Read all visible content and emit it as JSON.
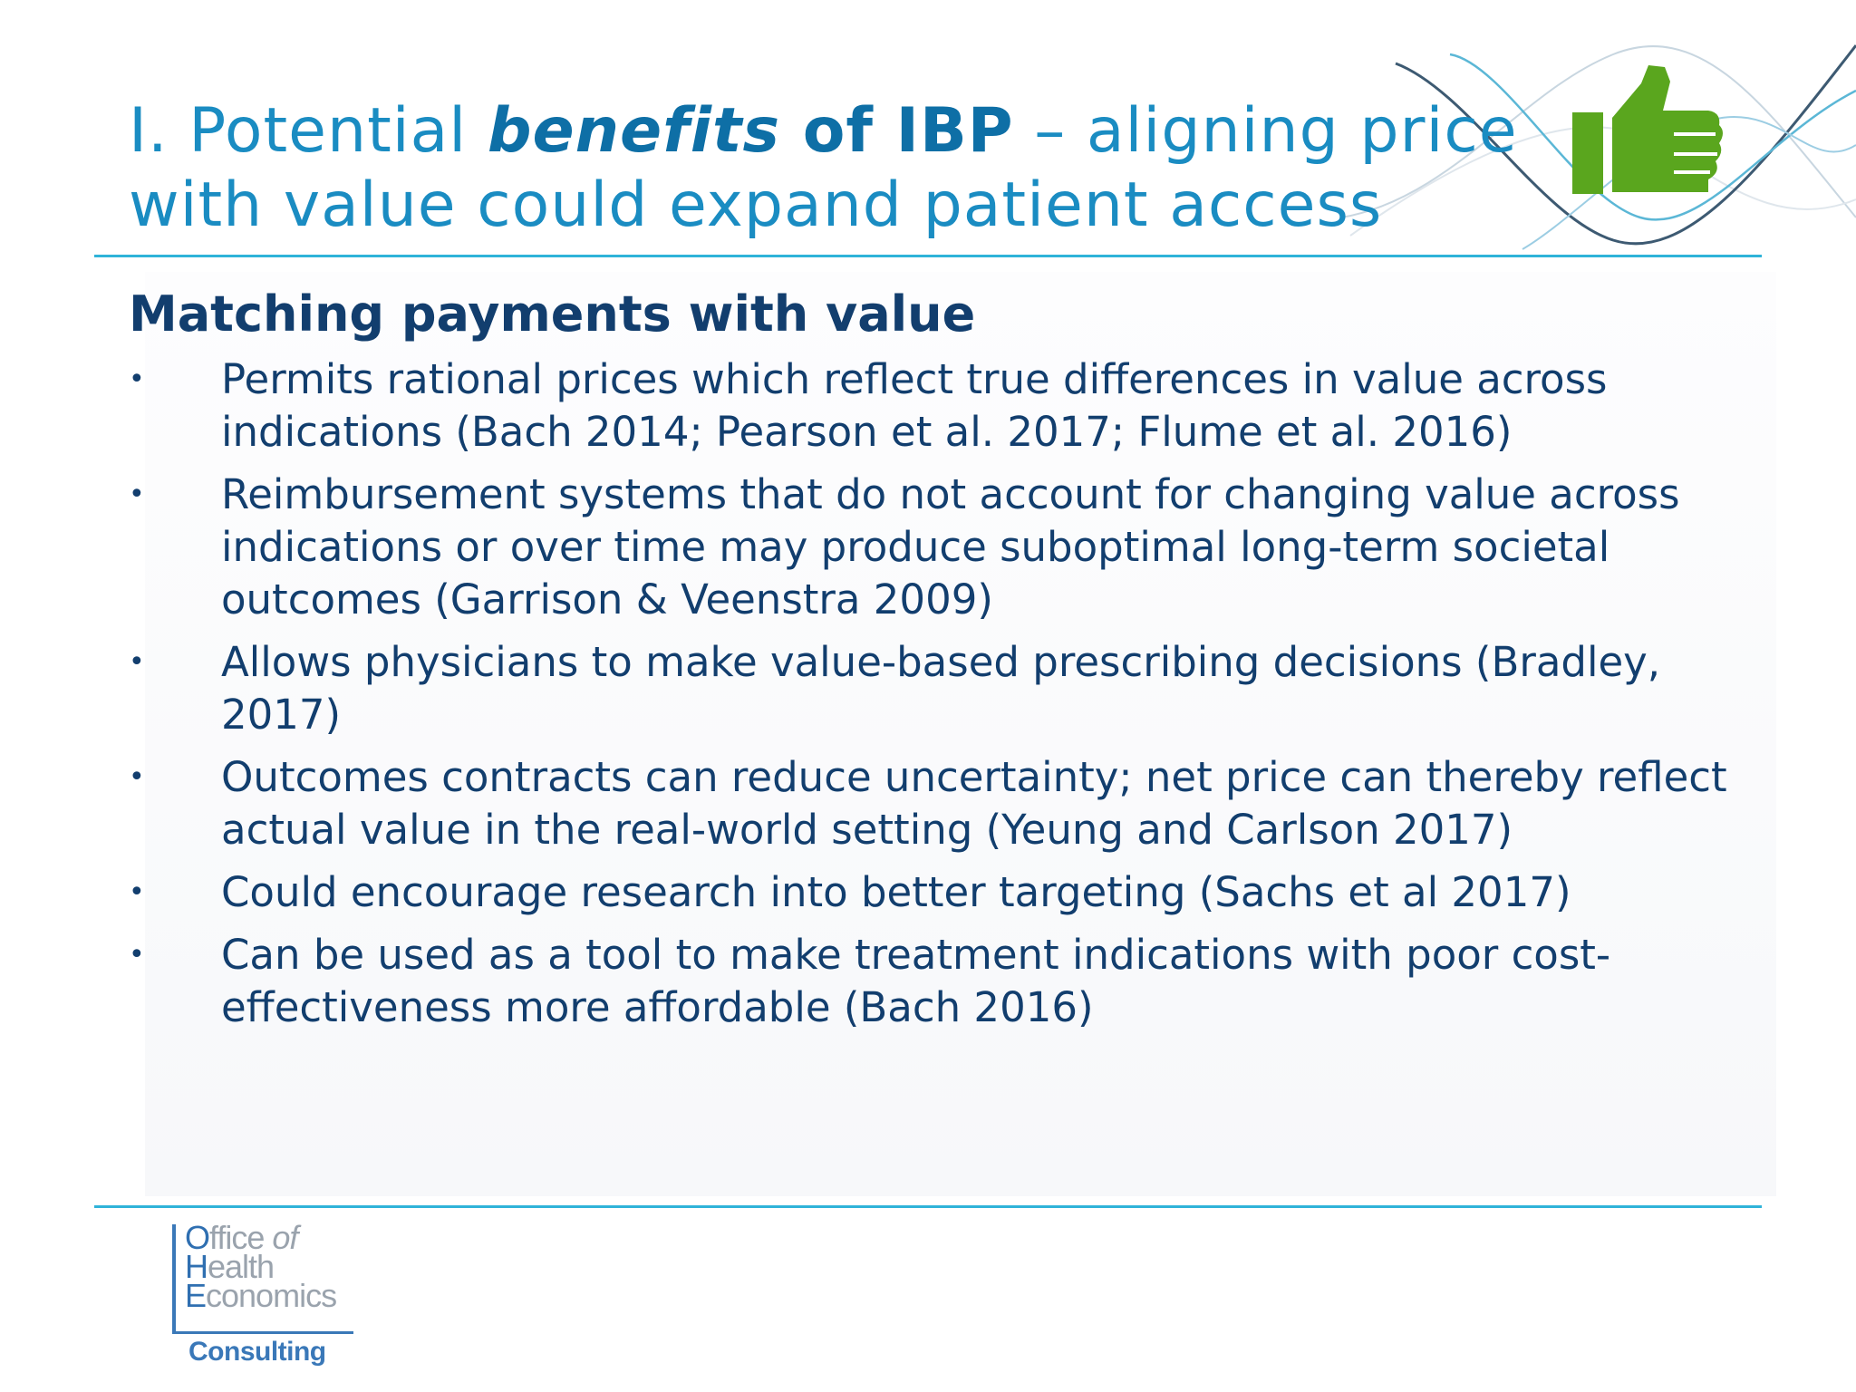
{
  "title": {
    "part1": "I. Potential ",
    "em": "benefits",
    "strong": " of IBP",
    "part2": " – aligning price with value could expand patient access"
  },
  "section": {
    "heading": "Matching payments with value",
    "bullet_glyph": "•",
    "bullets": [
      "Permits rational prices which reflect true differences in value across indications (Bach 2014; Pearson et al. 2017; Flume et al. 2016)",
      "Reimbursement systems that do not account for changing value across indications or over time may produce suboptimal long-term societal outcomes (Garrison & Veenstra 2009)",
      "Allows physicians to make value-based prescribing decisions (Bradley, 2017)",
      "Outcomes contracts can reduce uncertainty; net price can thereby reflect actual value in the real-world setting (Yeung and Carlson 2017)",
      "Could encourage research into better targeting (Sachs et al 2017)",
      "Can be used as a tool to make treatment indications with poor cost-effectiveness more affordable (Bach 2016)"
    ]
  },
  "logo": {
    "line1_cap": "O",
    "line1_rest": "ffice ",
    "line1_italic": "of",
    "line2_cap": "H",
    "line2_rest": "ealth",
    "line3_cap": "E",
    "line3_rest": "conomics",
    "sub": "Consulting"
  },
  "icons": {
    "thumb": "thumbs-up-icon",
    "decor": "wave-lines-decoration"
  },
  "colors": {
    "title": "#1a8cc2",
    "text": "#123e6e",
    "rule": "#2fb3d9",
    "thumb": "#5aa61e"
  }
}
